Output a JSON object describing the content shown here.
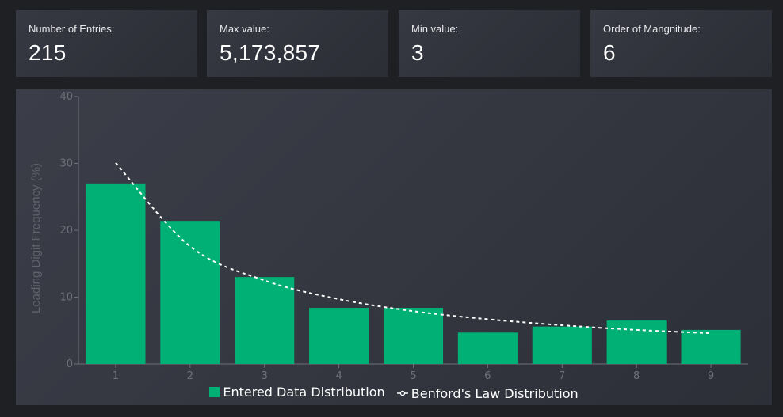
{
  "stats": [
    {
      "label": "Number of Entries:",
      "value": "215"
    },
    {
      "label": "Max value:",
      "value": "5,173,857"
    },
    {
      "label": "Min value:",
      "value": "3"
    },
    {
      "label": "Order of Mangnitude:",
      "value": "6"
    }
  ],
  "colors": {
    "bar": "#00b074",
    "line": "#ffffff",
    "axis": "#6e707a"
  },
  "chart_data": {
    "type": "bar",
    "title": "",
    "xlabel": "",
    "ylabel": "Leading Digit Frequency (%)",
    "categories": [
      "1",
      "2",
      "3",
      "4",
      "5",
      "6",
      "7",
      "8",
      "9"
    ],
    "yticks": [
      "0",
      "10",
      "20",
      "30",
      "40"
    ],
    "ylim": [
      0,
      40
    ],
    "grid": false,
    "legend_position": "bottom-center",
    "series": [
      {
        "name": "Entered Data Distribution",
        "type": "bar",
        "values": [
          27.0,
          21.4,
          13.0,
          8.4,
          8.4,
          4.7,
          5.6,
          6.5,
          5.1
        ]
      },
      {
        "name": "Benford's Law Distribution",
        "type": "line",
        "style": "dashed",
        "values": [
          30.1,
          17.6,
          12.5,
          9.7,
          7.9,
          6.7,
          5.8,
          5.1,
          4.6
        ]
      }
    ]
  }
}
